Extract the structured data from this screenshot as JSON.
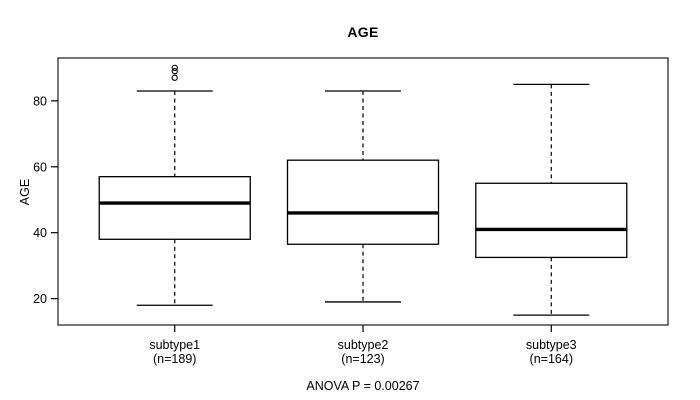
{
  "chart_data": {
    "type": "boxplot",
    "title": "AGE",
    "ylabel": "AGE",
    "xlabel": "",
    "annotation": "ANOVA P = 0.00267",
    "yticks": [
      20,
      40,
      60,
      80
    ],
    "ylim": [
      12,
      93
    ],
    "xlim": [
      0.38,
      3.62
    ],
    "grid": false,
    "legend": "none",
    "groups": [
      {
        "label": "subtype1",
        "sublabel": "(n=189)",
        "n": 189,
        "whisker_low": 18,
        "q1": 38,
        "median": 49,
        "q3": 57,
        "whisker_high": 83,
        "outliers": [
          87,
          89,
          90
        ]
      },
      {
        "label": "subtype2",
        "sublabel": "(n=123)",
        "n": 123,
        "whisker_low": 19,
        "q1": 36.5,
        "median": 46,
        "q3": 62,
        "whisker_high": 83,
        "outliers": []
      },
      {
        "label": "subtype3",
        "sublabel": "(n=164)",
        "n": 164,
        "whisker_low": 15,
        "q1": 32.5,
        "median": 41,
        "q3": 55,
        "whisker_high": 85,
        "outliers": []
      }
    ],
    "colors": {
      "line": "#000000",
      "frame": "#3c3c3c",
      "background": "#ffffff",
      "box_fill": "#ffffff"
    }
  }
}
